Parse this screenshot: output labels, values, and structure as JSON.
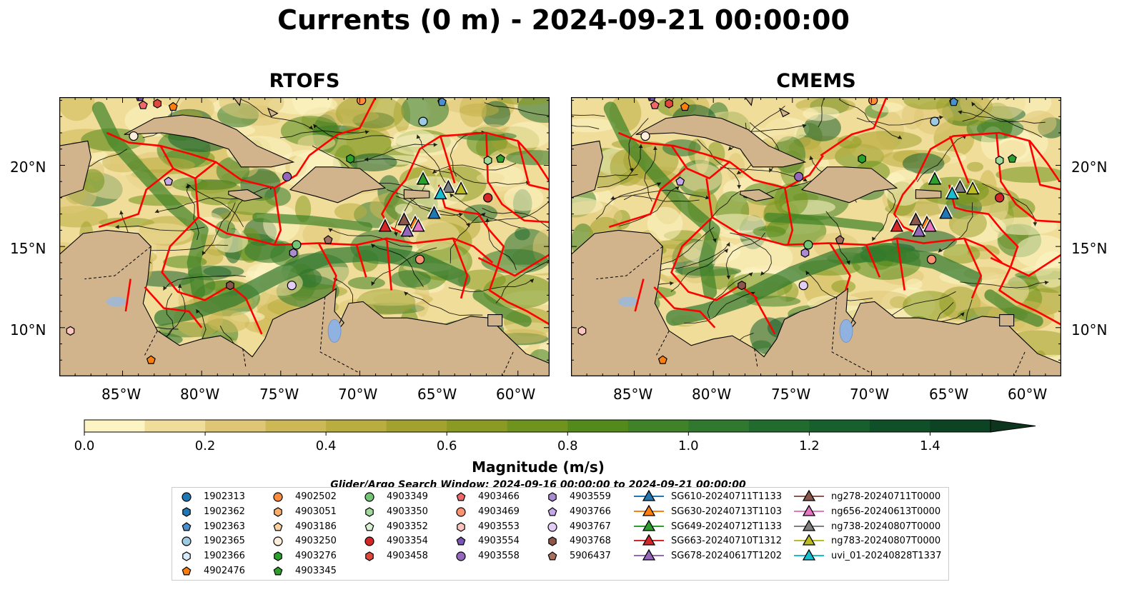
{
  "title": "Currents (0 m) - 2024-09-21 00:00:00",
  "panels": [
    {
      "title": "RTOFS"
    },
    {
      "title": "CMEMS"
    }
  ],
  "lat_ticks": [
    "20°N",
    "15°N",
    "10°N"
  ],
  "lon_ticks": [
    "85°W",
    "80°W",
    "75°W",
    "70°W",
    "65°W",
    "60°W"
  ],
  "colorbar": {
    "title": "Magnitude (m/s)",
    "tick_labels": [
      "0.0",
      "0.2",
      "0.4",
      "0.6",
      "0.8",
      "1.0",
      "1.2",
      "1.4"
    ],
    "colors": [
      "#fdf4c4",
      "#f0dd99",
      "#dfc676",
      "#cdb856",
      "#b9ad40",
      "#a3a22f",
      "#8a9a22",
      "#6f931c",
      "#548a1c",
      "#3f8227",
      "#2f782e",
      "#226b2f",
      "#175f2c",
      "#0f5028",
      "#0c4322",
      "#0d351d",
      "#10281a"
    ],
    "extend": "max",
    "range": [
      0,
      1.5
    ]
  },
  "search_window": "Glider/Argo Search Window: 2024-09-16 00:00:00 to 2024-09-21 00:00:00",
  "chart_data": {
    "type": "map",
    "lon_range": [
      -89,
      -58
    ],
    "lat_range": [
      7,
      24.2
    ],
    "land_color": "#d2b48c",
    "eez_color": "#ff0000",
    "platforms": [
      {
        "name": "1902313",
        "marker": "circle",
        "color": "#1f77b4"
      },
      {
        "name": "1902362",
        "marker": "hexagon",
        "color": "#1f77b4"
      },
      {
        "name": "1902363",
        "marker": "pentagon",
        "color": "#4a90cf"
      },
      {
        "name": "1902365",
        "marker": "circle",
        "color": "#9ecae1"
      },
      {
        "name": "1902366",
        "marker": "hexagon",
        "color": "#d6eaf8"
      },
      {
        "name": "4902476",
        "marker": "pentagon",
        "color": "#ff7f0e"
      },
      {
        "name": "4902502",
        "marker": "circle",
        "color": "#fd8d3c"
      },
      {
        "name": "4903051",
        "marker": "hexagon",
        "color": "#fdae6b"
      },
      {
        "name": "4903186",
        "marker": "pentagon",
        "color": "#fdd0a2"
      },
      {
        "name": "4903250",
        "marker": "circle",
        "color": "#feeedb"
      },
      {
        "name": "4903276",
        "marker": "hexagon",
        "color": "#2ca02c"
      },
      {
        "name": "4903345",
        "marker": "pentagon",
        "color": "#2ca02c"
      },
      {
        "name": "4903349",
        "marker": "circle",
        "color": "#74c476"
      },
      {
        "name": "4903350",
        "marker": "hexagon",
        "color": "#a1d99b"
      },
      {
        "name": "4903352",
        "marker": "pentagon",
        "color": "#d9f0d3"
      },
      {
        "name": "4903354",
        "marker": "circle",
        "color": "#d62728"
      },
      {
        "name": "4903458",
        "marker": "hexagon",
        "color": "#e0483e"
      },
      {
        "name": "4903466",
        "marker": "pentagon",
        "color": "#f0686c"
      },
      {
        "name": "4903469",
        "marker": "circle",
        "color": "#fc9272"
      },
      {
        "name": "4903553",
        "marker": "hexagon",
        "color": "#fcc5c0"
      },
      {
        "name": "4903554",
        "marker": "pentagon",
        "color": "#7b55b5"
      },
      {
        "name": "4903558",
        "marker": "circle",
        "color": "#9467bd"
      },
      {
        "name": "4903559",
        "marker": "hexagon",
        "color": "#a98bd1"
      },
      {
        "name": "4903766",
        "marker": "pentagon",
        "color": "#c5a8e8"
      },
      {
        "name": "4903767",
        "marker": "circle",
        "color": "#e2cdf5"
      },
      {
        "name": "4903768",
        "marker": "hexagon",
        "color": "#8c564b"
      },
      {
        "name": "5906437",
        "marker": "pentagon",
        "color": "#a5705f"
      }
    ],
    "gliders": [
      {
        "name": "SG610-20240711T1133",
        "color": "#1f77b4",
        "line": "#1f77b4",
        "lon": -65.3,
        "lat": 17.0
      },
      {
        "name": "SG630-20240713T1103",
        "color": "#ff7f0e",
        "line": "#ff7f0e",
        "lon": -66.5,
        "lat": 16.4
      },
      {
        "name": "SG649-20240712T1133",
        "color": "#2ca02c",
        "line": "#2ca02c",
        "lon": -66.0,
        "lat": 19.1
      },
      {
        "name": "SG663-20240710T1312",
        "color": "#d62728",
        "line": "#d62728",
        "lon": -68.4,
        "lat": 16.2
      },
      {
        "name": "SG678-20240617T1202",
        "color": "#9467bd",
        "line": "#9467bd",
        "lon": -67.0,
        "lat": 15.9
      },
      {
        "name": "ng278-20240711T0000",
        "color": "#8c564b",
        "line": "#8c564b",
        "lon": -67.2,
        "lat": 16.6
      },
      {
        "name": "ng656-20240613T0000",
        "color": "#e377c2",
        "line": "#e377c2",
        "lon": -66.3,
        "lat": 16.2
      },
      {
        "name": "ng738-20240807T0000",
        "color": "#7f7f7f",
        "line": "#7f7f7f",
        "lon": -64.4,
        "lat": 18.6
      },
      {
        "name": "ng783-20240807T0000",
        "color": "#bcbd22",
        "line": "#bcbd22",
        "lon": -63.6,
        "lat": 18.5
      },
      {
        "name": "uvi_01-20240828T1337",
        "color": "#17becf",
        "line": "#17becf",
        "lon": -64.9,
        "lat": 18.2
      }
    ]
  }
}
